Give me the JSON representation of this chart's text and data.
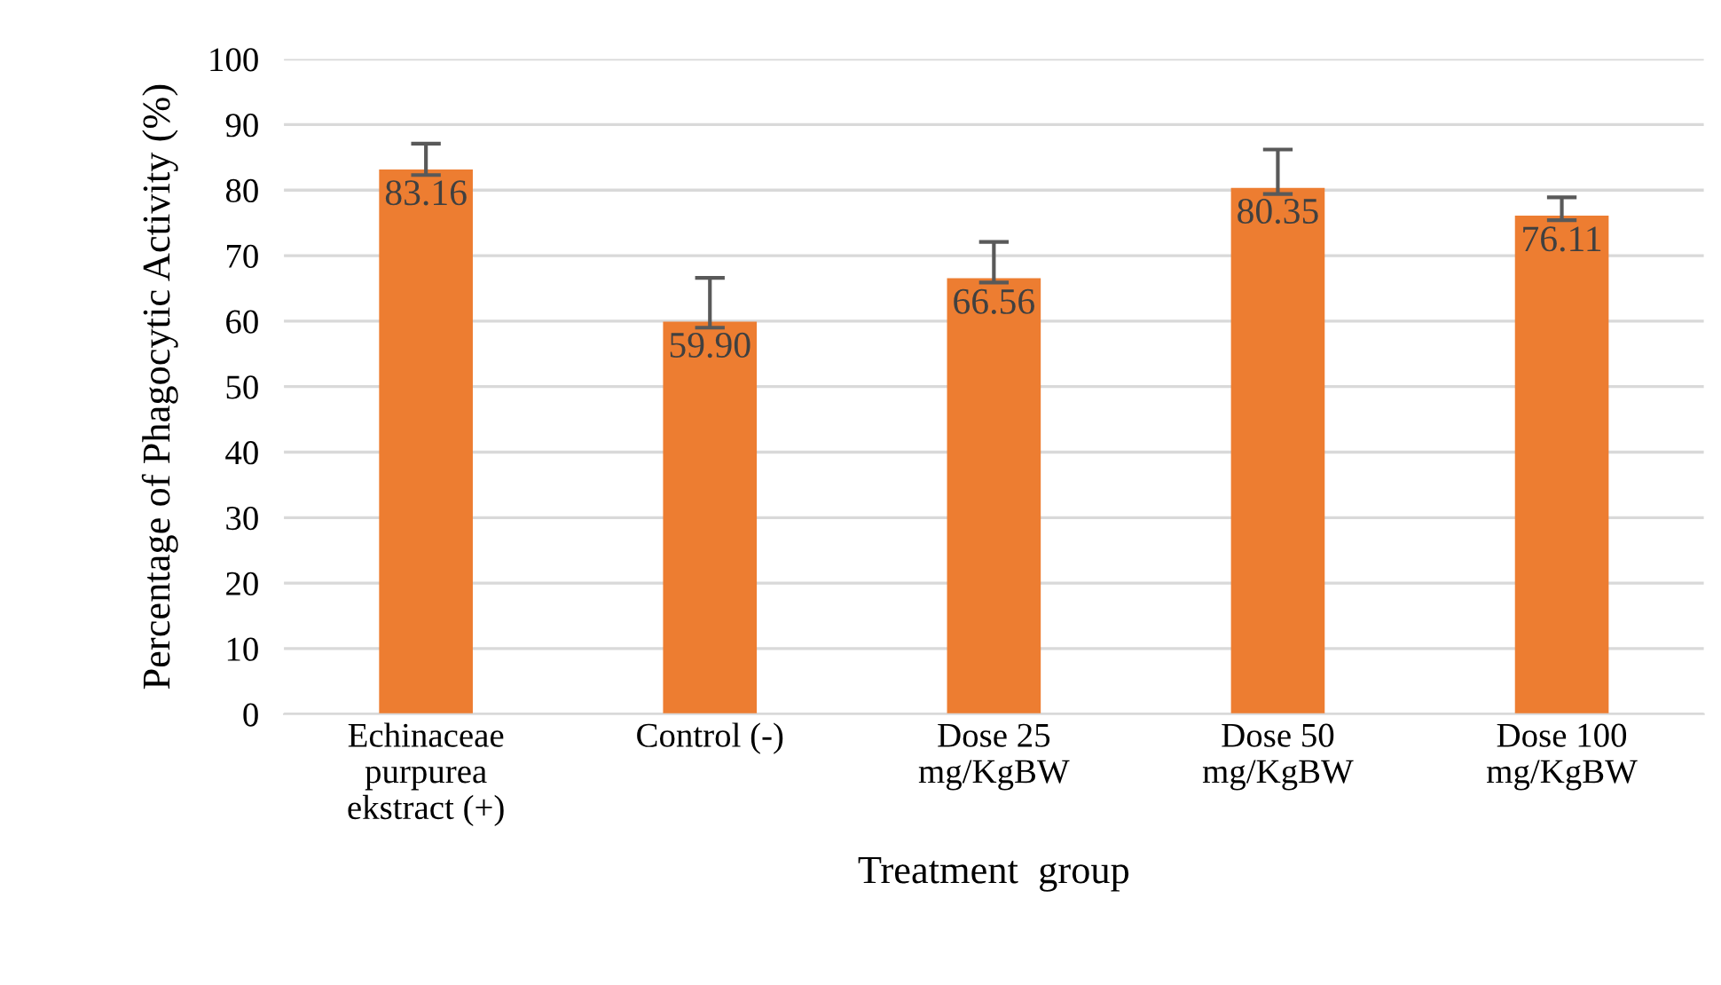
{
  "chart_data": {
    "type": "bar",
    "xlabel": "Treatment  group",
    "ylabel": "Percentage of Phagocytic Activity (%)",
    "categories": [
      "Echinaceae\npurpurea\nekstract (+)",
      "Control (-)",
      "Dose 25\nmg/KgBW",
      "Dose 50\nmg/KgBW",
      "Dose 100\nmg/KgBW"
    ],
    "values": [
      83.16,
      59.9,
      66.56,
      80.35,
      76.11
    ],
    "value_labels": [
      "83.16",
      "59.90",
      "66.56",
      "80.35",
      "76.11"
    ],
    "errors": [
      [
        82.3,
        87.1
      ],
      [
        59.0,
        66.6
      ],
      [
        65.9,
        72.1
      ],
      [
        79.4,
        86.2
      ],
      [
        75.4,
        78.9
      ]
    ],
    "color": "#ed7d31",
    "ylim": [
      0,
      100
    ],
    "yticks": [
      0,
      10,
      20,
      30,
      40,
      50,
      60,
      70,
      80,
      90,
      100
    ],
    "grid": "y"
  }
}
